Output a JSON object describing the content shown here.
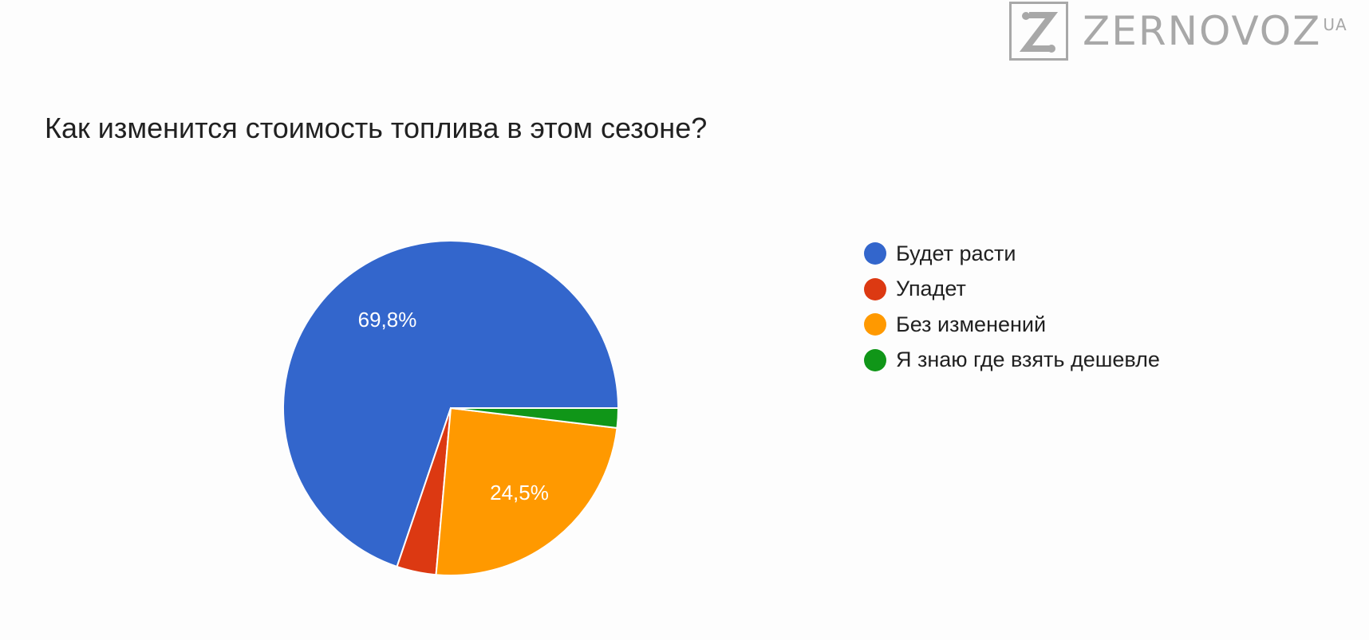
{
  "logo": {
    "letter": "Z",
    "name": "ZERNOVOZ",
    "suffix": "UA"
  },
  "chart_data": {
    "type": "pie",
    "title": "Как изменится стоимость топлива в этом сезоне?",
    "slices": [
      {
        "label": "Будет расти",
        "value": 69.8,
        "color": "#3366cc",
        "data_label": "69,8%"
      },
      {
        "label": "Упадет",
        "value": 3.8,
        "color": "#dc3912",
        "data_label": ""
      },
      {
        "label": "Без изменений",
        "value": 24.5,
        "color": "#ff9900",
        "data_label": "24,5%"
      },
      {
        "label": "Я знаю где взять дешевле",
        "value": 1.9,
        "color": "#109618",
        "data_label": ""
      }
    ],
    "legend_position": "right"
  }
}
